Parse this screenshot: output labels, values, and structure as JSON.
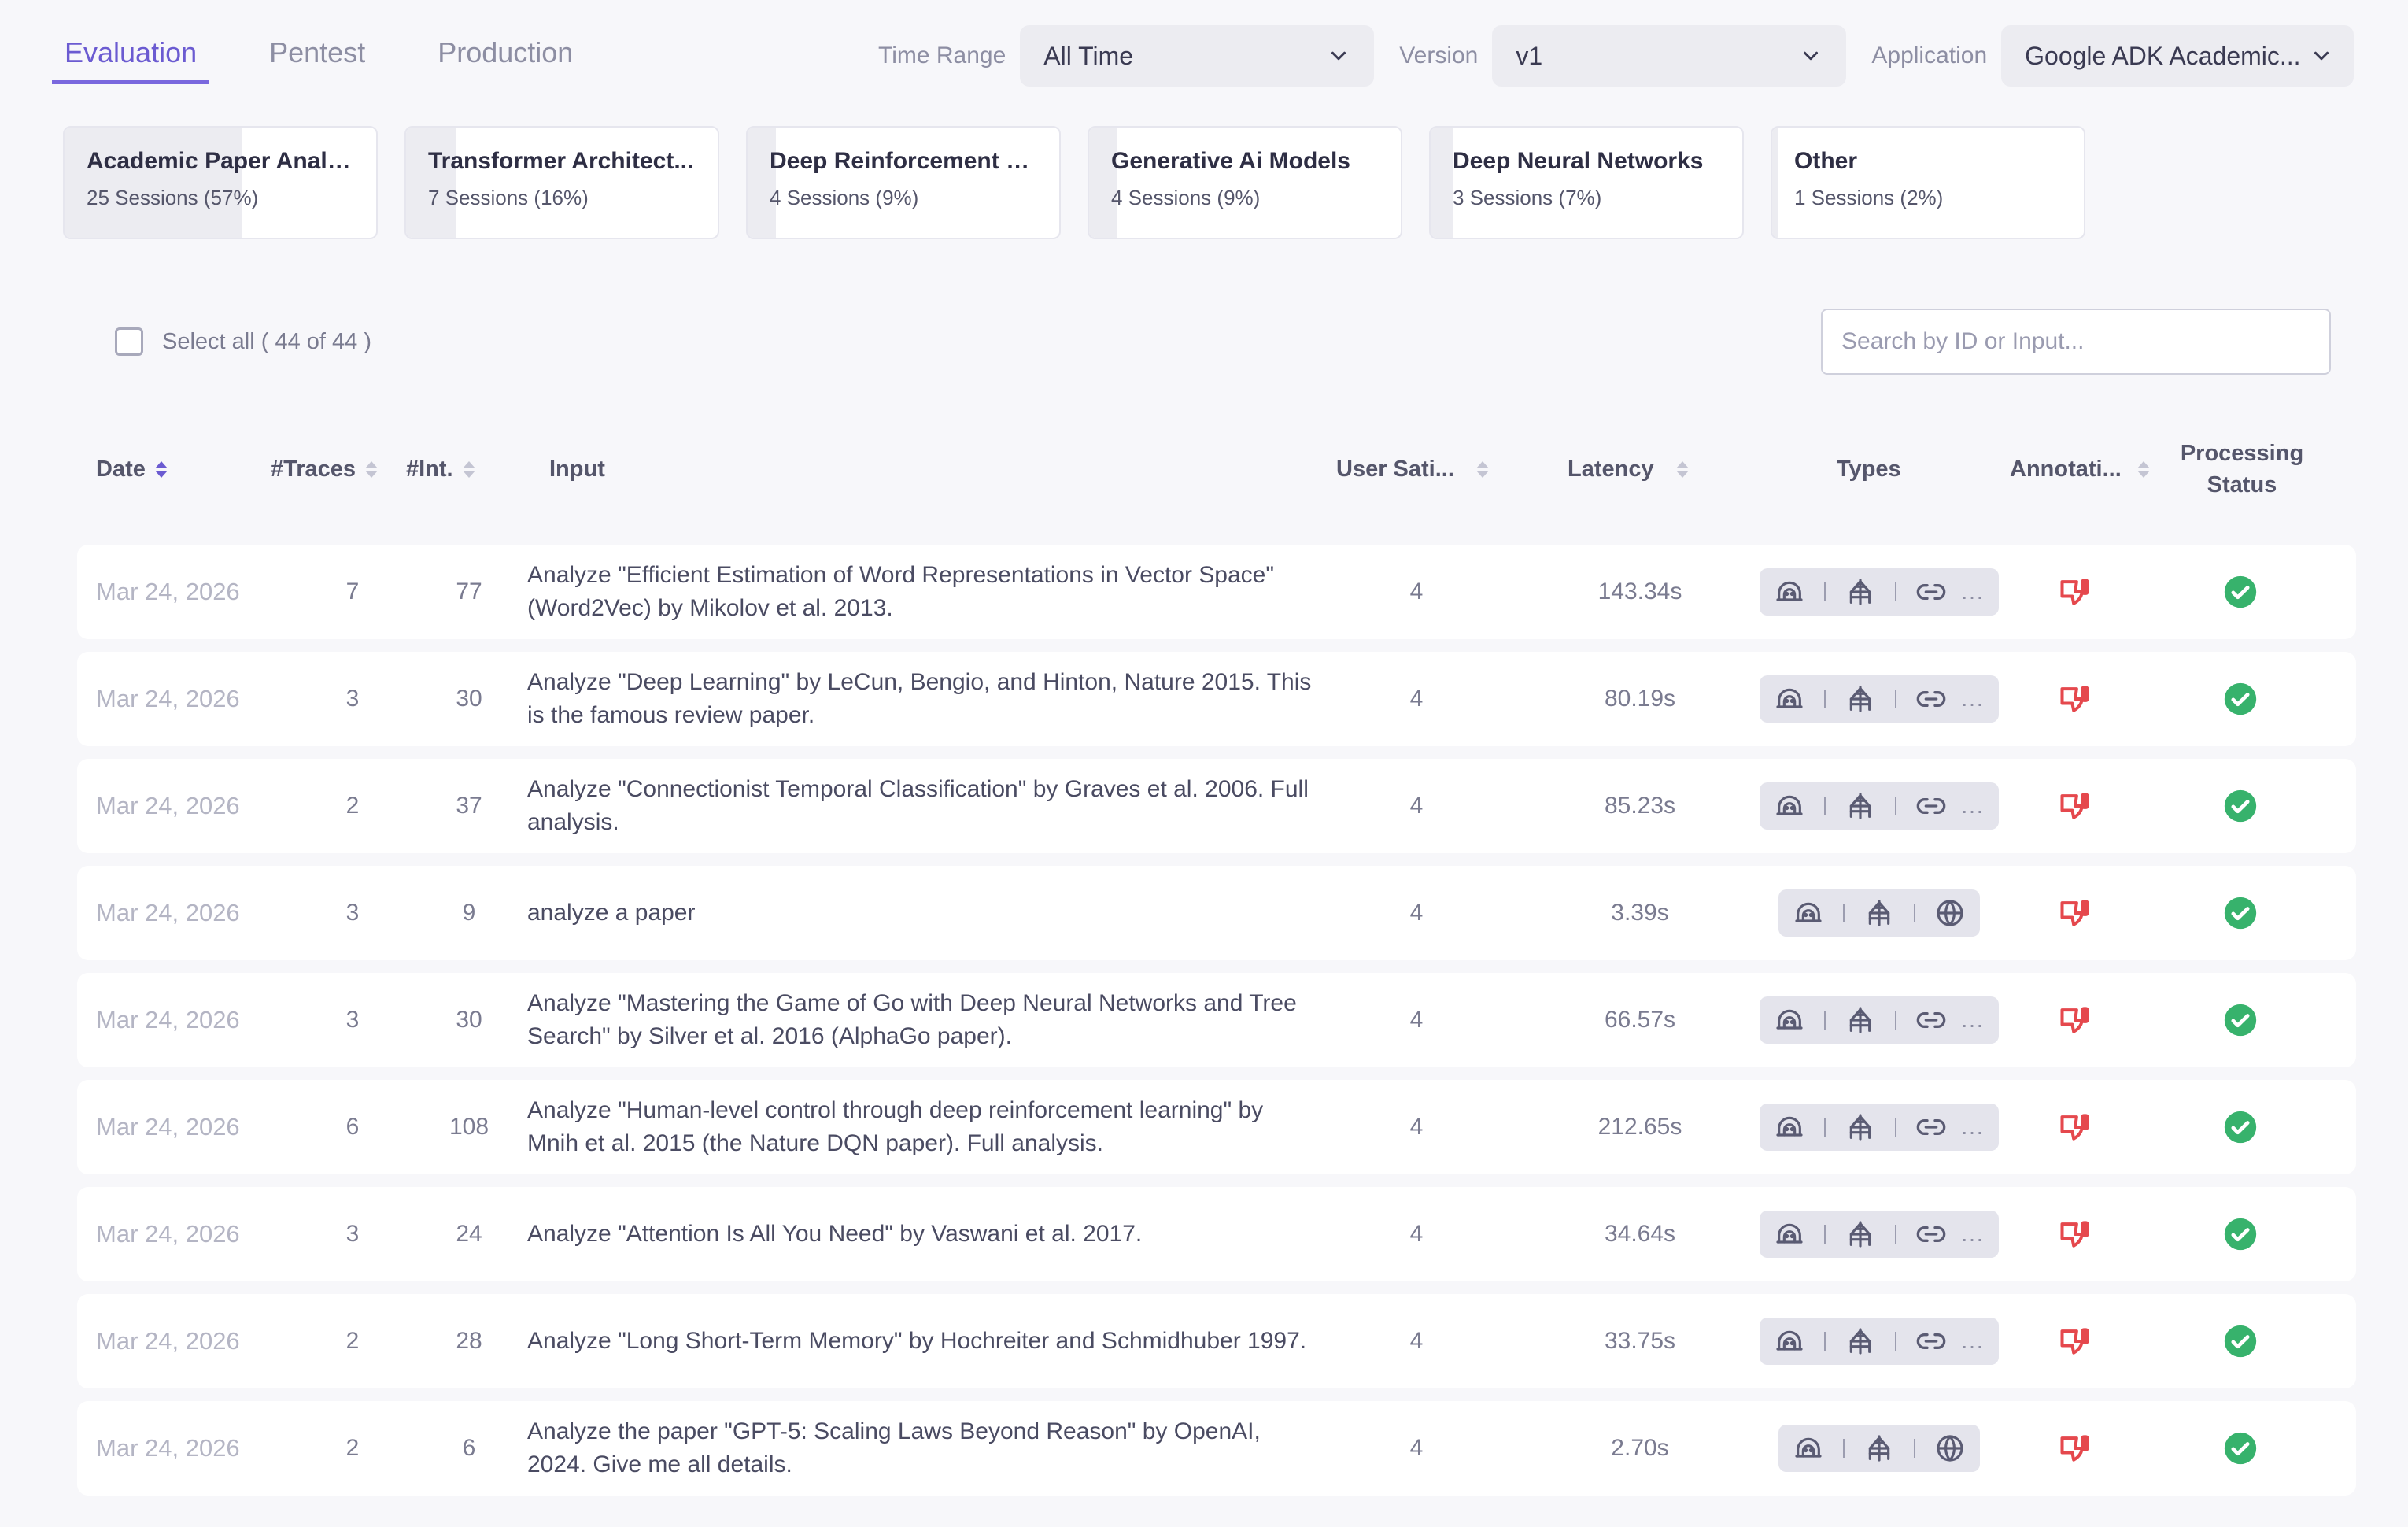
{
  "tabs": [
    {
      "label": "Evaluation",
      "active": true
    },
    {
      "label": "Pentest",
      "active": false
    },
    {
      "label": "Production",
      "active": false
    }
  ],
  "filters": {
    "time_range": {
      "label": "Time Range",
      "value": "All Time"
    },
    "version": {
      "label": "Version",
      "value": "v1"
    },
    "application": {
      "label": "Application",
      "value": "Google ADK Academic..."
    }
  },
  "topics": [
    {
      "title": "Academic Paper Analy...",
      "sessions": "25 Sessions (57%)",
      "share": 0.57
    },
    {
      "title": "Transformer Architect...",
      "sessions": "7 Sessions (16%)",
      "share": 0.16
    },
    {
      "title": "Deep Reinforcement L...",
      "sessions": "4 Sessions (9%)",
      "share": 0.09
    },
    {
      "title": "Generative Ai Models",
      "sessions": "4 Sessions (9%)",
      "share": 0.09
    },
    {
      "title": "Deep Neural Networks",
      "sessions": "3 Sessions (7%)",
      "share": 0.07
    },
    {
      "title": "Other",
      "sessions": "1 Sessions (2%)",
      "share": 0.02
    }
  ],
  "select_all": {
    "label": "Select all ( 44 of 44 )"
  },
  "search": {
    "placeholder": "Search by ID or Input..."
  },
  "columns": {
    "date": "Date",
    "traces": "#Traces",
    "interactions": "#Int.",
    "input": "Input",
    "user_satisfaction": "User Sati...",
    "latency": "Latency",
    "types": "Types",
    "annotations": "Annotati...",
    "processing_status_line1": "Processing",
    "processing_status_line2": "Status"
  },
  "icons": {
    "type_agent": "agent-icon",
    "type_model": "network-icon",
    "type_link": "link-icon",
    "type_web": "globe-icon",
    "annotation": "thumbs-down-icon",
    "status": "check-circle-icon",
    "chevron": "chevron-down-icon",
    "colors": {
      "accent": "#6b5bd1",
      "annotation": "#e5484d",
      "status": "#37b26c"
    }
  },
  "rows": [
    {
      "date": "Mar 24, 2026",
      "traces": "7",
      "int": "77",
      "input": "Analyze \"Efficient Estimation of Word Representations in Vector Space\" (Word2Vec) by Mikolov et al. 2013.",
      "sat": "4",
      "latency": "143.34s",
      "types": [
        "agent",
        "network",
        "link"
      ],
      "more": "..."
    },
    {
      "date": "Mar 24, 2026",
      "traces": "3",
      "int": "30",
      "input": "Analyze \"Deep Learning\" by LeCun, Bengio, and Hinton, Nature 2015. This is the famous review paper.",
      "sat": "4",
      "latency": "80.19s",
      "types": [
        "agent",
        "network",
        "link"
      ],
      "more": "..."
    },
    {
      "date": "Mar 24, 2026",
      "traces": "2",
      "int": "37",
      "input": "Analyze \"Connectionist Temporal Classification\" by Graves et al. 2006. Full analysis.",
      "sat": "4",
      "latency": "85.23s",
      "types": [
        "agent",
        "network",
        "link"
      ],
      "more": "..."
    },
    {
      "date": "Mar 24, 2026",
      "traces": "3",
      "int": "9",
      "input": "analyze a paper",
      "sat": "4",
      "latency": "3.39s",
      "types": [
        "agent",
        "network",
        "web"
      ],
      "more": ""
    },
    {
      "date": "Mar 24, 2026",
      "traces": "3",
      "int": "30",
      "input": "Analyze \"Mastering the Game of Go with Deep Neural Networks and Tree Search\" by Silver et al. 2016 (AlphaGo paper).",
      "sat": "4",
      "latency": "66.57s",
      "types": [
        "agent",
        "network",
        "link"
      ],
      "more": "..."
    },
    {
      "date": "Mar 24, 2026",
      "traces": "6",
      "int": "108",
      "input": "Analyze \"Human-level control through deep reinforcement learning\" by Mnih et al. 2015 (the Nature DQN paper). Full analysis.",
      "sat": "4",
      "latency": "212.65s",
      "types": [
        "agent",
        "network",
        "link"
      ],
      "more": "..."
    },
    {
      "date": "Mar 24, 2026",
      "traces": "3",
      "int": "24",
      "input": "Analyze \"Attention Is All You Need\" by Vaswani et al. 2017.",
      "sat": "4",
      "latency": "34.64s",
      "types": [
        "agent",
        "network",
        "link"
      ],
      "more": "..."
    },
    {
      "date": "Mar 24, 2026",
      "traces": "2",
      "int": "28",
      "input": "Analyze \"Long Short-Term Memory\" by Hochreiter and Schmidhuber 1997.",
      "sat": "4",
      "latency": "33.75s",
      "types": [
        "agent",
        "network",
        "link"
      ],
      "more": "..."
    },
    {
      "date": "Mar 24, 2026",
      "traces": "2",
      "int": "6",
      "input": "Analyze the paper \"GPT-5: Scaling Laws Beyond Reason\" by OpenAI, 2024. Give me all details.",
      "sat": "4",
      "latency": "2.70s",
      "types": [
        "agent",
        "network",
        "web"
      ],
      "more": ""
    }
  ]
}
